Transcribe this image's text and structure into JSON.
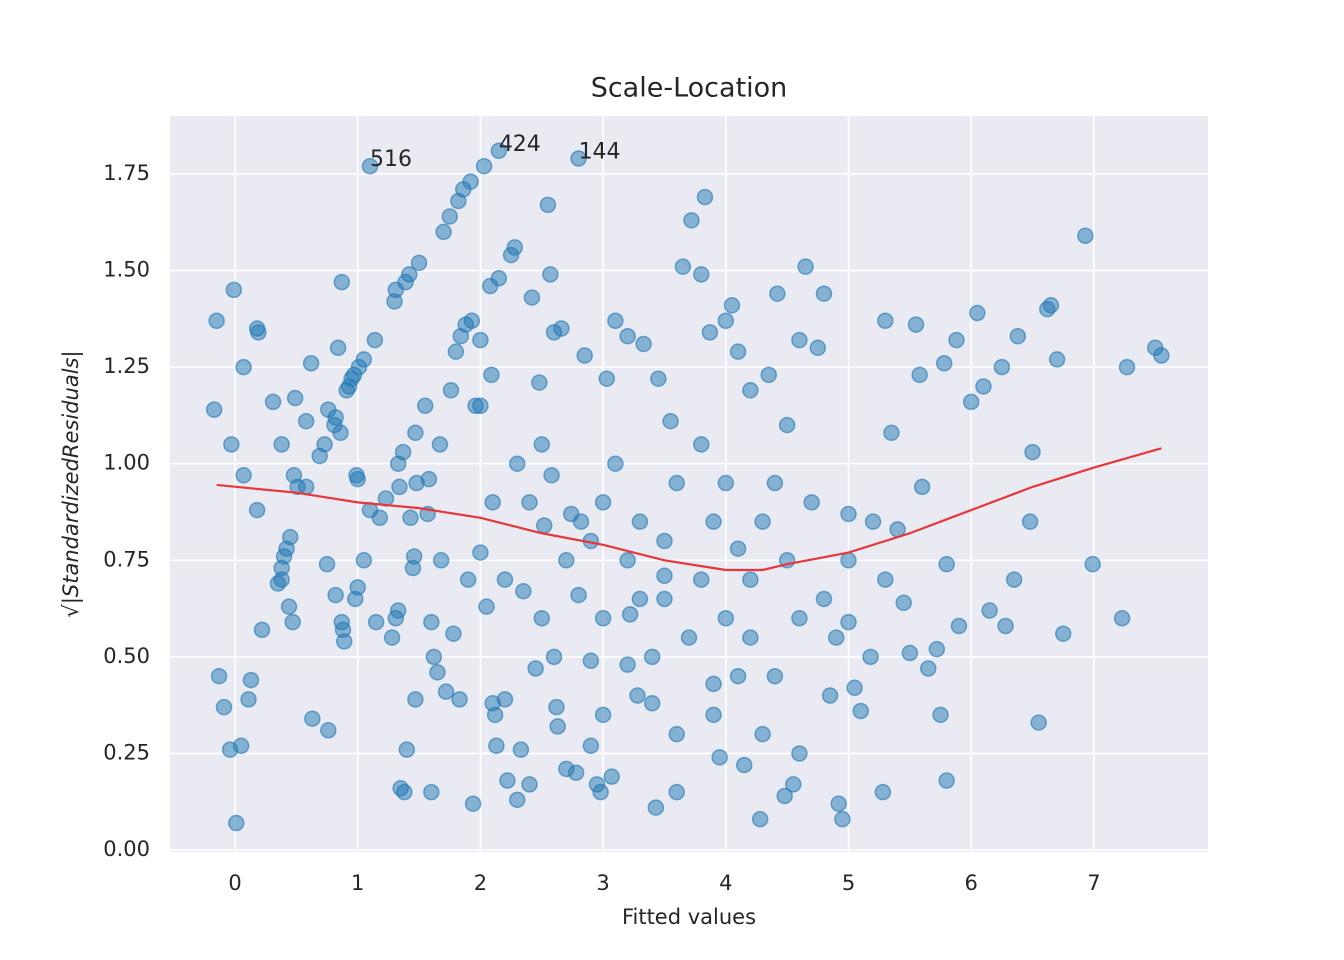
{
  "chart_data": {
    "type": "scatter",
    "title": "Scale-Location",
    "x_label": "Fitted values",
    "y_label": "√|StandardizedResiduals|",
    "color": "#1f77b4",
    "grid": true,
    "background": "#eaeaf2",
    "x": [
      -0.17,
      -0.15,
      -0.01,
      -0.03,
      0.07,
      0.07,
      0.18,
      0.19,
      0.18,
      0.22,
      -0.13,
      -0.09,
      0.13,
      0.11,
      -0.04,
      0.05,
      0.01,
      0.31,
      0.38,
      0.45,
      0.42,
      0.4,
      0.38,
      0.35,
      0.38,
      0.44,
      0.47,
      0.48,
      0.49,
      0.51,
      0.58,
      0.58,
      0.62,
      0.63,
      0.69,
      0.73,
      0.76,
      0.75,
      0.76,
      0.81,
      0.82,
      0.82,
      0.84,
      0.86,
      0.87,
      0.87,
      0.88,
      0.89,
      0.91,
      0.93,
      0.95,
      0.97,
      0.98,
      0.99,
      1.0,
      1.0,
      1.01,
      1.05,
      1.05,
      1.1,
      1.14,
      1.15,
      1.18,
      1.23,
      1.28,
      1.3,
      1.31,
      1.31,
      1.33,
      1.33,
      1.34,
      1.35,
      1.37,
      1.38,
      1.39,
      1.4,
      1.42,
      1.43,
      1.45,
      1.46,
      1.47,
      1.47,
      1.48,
      1.5,
      1.55,
      1.57,
      1.58,
      1.6,
      1.6,
      1.62,
      1.65,
      1.67,
      1.68,
      1.7,
      1.72,
      1.75,
      1.76,
      1.78,
      1.8,
      1.82,
      1.83,
      1.84,
      1.86,
      1.88,
      1.9,
      1.92,
      1.93,
      1.94,
      1.96,
      2.0,
      2.0,
      2.03,
      2.05,
      2.08,
      2.09,
      2.1,
      2.12,
      2.13,
      2.15,
      2.2,
      2.22,
      2.25,
      2.28,
      2.3,
      2.33,
      2.35,
      2.4,
      2.42,
      2.45,
      2.48,
      2.52,
      2.55,
      2.57,
      2.58,
      2.6,
      2.62,
      2.63,
      2.66,
      2.7,
      2.74,
      2.78,
      2.82,
      2.85,
      2.9,
      2.95,
      2.98,
      3.0,
      3.03,
      3.07,
      3.1,
      3.2,
      3.22,
      3.28,
      3.33,
      3.4,
      3.43,
      3.45,
      3.5,
      3.55,
      3.6,
      3.65,
      3.72,
      3.8,
      3.83,
      3.87,
      3.9,
      3.95,
      4.0,
      4.05,
      4.1,
      4.15,
      4.2,
      4.28,
      4.35,
      4.42,
      4.48,
      4.55,
      4.6,
      4.65,
      4.75,
      4.8,
      4.85,
      4.92,
      4.95,
      5.0,
      5.05,
      5.1,
      5.18,
      5.28,
      5.3,
      5.35,
      5.45,
      5.5,
      5.55,
      5.58,
      5.6,
      5.65,
      5.72,
      5.75,
      5.78,
      5.8,
      5.88,
      5.9,
      6.0,
      6.05,
      6.1,
      6.15,
      6.25,
      6.28,
      6.35,
      6.38,
      6.5,
      6.48,
      6.55,
      6.62,
      6.65,
      6.7,
      6.75,
      6.93,
      6.99,
      7.23,
      7.27,
      7.5,
      7.55,
      2.8,
      2.15,
      1.1,
      3.0,
      3.2,
      3.5,
      3.8,
      4.0,
      4.2,
      4.5,
      3.3,
      2.7,
      2.5,
      4.6,
      4.3,
      3.1,
      3.6,
      4.0,
      2.9,
      3.7,
      4.4,
      4.7,
      5.0,
      5.2,
      2.4,
      2.2,
      3.4,
      3.9,
      4.1,
      4.9,
      2.6,
      3.0,
      3.5,
      4.2,
      4.8,
      5.3,
      2.3,
      2.0,
      3.8,
      4.5,
      5.4,
      5.8,
      4.1,
      3.3,
      2.8,
      2.1,
      2.5,
      3.9,
      4.3,
      3.6,
      2.9,
      4.6,
      5.0,
      4.4,
      3.2
    ],
    "values": [
      1.14,
      1.37,
      1.45,
      1.05,
      1.25,
      0.97,
      1.35,
      1.34,
      0.88,
      0.57,
      0.45,
      0.37,
      0.44,
      0.39,
      0.26,
      0.27,
      0.07,
      1.16,
      1.05,
      0.81,
      0.78,
      0.76,
      0.73,
      0.69,
      0.7,
      0.63,
      0.59,
      0.97,
      1.17,
      0.94,
      0.94,
      1.11,
      1.26,
      0.34,
      1.02,
      1.05,
      1.14,
      0.74,
      0.31,
      1.1,
      1.12,
      0.66,
      1.3,
      1.08,
      1.47,
      0.59,
      0.57,
      0.54,
      1.19,
      1.2,
      1.22,
      1.23,
      0.65,
      0.97,
      0.96,
      0.68,
      1.25,
      1.27,
      0.75,
      0.88,
      1.32,
      0.59,
      0.86,
      0.91,
      0.55,
      1.42,
      1.45,
      0.6,
      0.62,
      1.0,
      0.94,
      0.16,
      1.03,
      0.15,
      1.47,
      0.26,
      1.49,
      0.86,
      0.73,
      0.76,
      1.08,
      0.39,
      0.95,
      1.52,
      1.15,
      0.87,
      0.96,
      0.59,
      0.15,
      0.5,
      0.46,
      1.05,
      0.75,
      1.6,
      0.41,
      1.64,
      1.19,
      0.56,
      1.29,
      1.68,
      0.39,
      1.33,
      1.71,
      1.36,
      0.7,
      1.73,
      1.37,
      0.12,
      1.15,
      1.32,
      0.77,
      1.77,
      0.63,
      1.46,
      1.23,
      0.38,
      0.35,
      0.27,
      1.48,
      0.39,
      0.18,
      1.54,
      1.56,
      0.13,
      0.26,
      0.67,
      0.17,
      1.43,
      0.47,
      1.21,
      0.84,
      1.67,
      1.49,
      0.97,
      1.34,
      0.37,
      0.32,
      1.35,
      0.21,
      0.87,
      0.2,
      0.85,
      1.28,
      0.49,
      0.17,
      0.15,
      0.35,
      1.22,
      0.19,
      1.37,
      1.33,
      0.61,
      0.4,
      1.31,
      0.38,
      0.11,
      1.22,
      0.71,
      1.11,
      0.15,
      1.51,
      1.63,
      1.49,
      1.69,
      1.34,
      0.43,
      0.24,
      1.37,
      1.41,
      1.29,
      0.22,
      1.19,
      0.08,
      1.23,
      1.44,
      0.14,
      0.17,
      1.32,
      1.51,
      1.3,
      1.44,
      0.4,
      0.12,
      0.08,
      0.59,
      0.42,
      0.36,
      0.5,
      0.15,
      1.37,
      1.08,
      0.64,
      0.51,
      1.36,
      1.23,
      0.94,
      0.47,
      0.52,
      0.35,
      1.26,
      0.18,
      1.32,
      0.58,
      1.16,
      1.39,
      1.2,
      0.62,
      1.25,
      0.58,
      0.7,
      1.33,
      1.03,
      0.85,
      0.33,
      1.4,
      1.41,
      1.27,
      0.56,
      1.59,
      0.74,
      0.6,
      1.25,
      1.3,
      1.28,
      1.79,
      1.81,
      1.77,
      0.9,
      0.75,
      0.8,
      0.7,
      0.6,
      0.55,
      0.75,
      0.65,
      0.75,
      0.6,
      0.6,
      0.85,
      1.0,
      0.95,
      0.95,
      0.8,
      0.55,
      0.45,
      0.9,
      0.75,
      0.85,
      0.9,
      0.7,
      0.5,
      0.85,
      0.45,
      0.55,
      0.5,
      0.6,
      0.65,
      0.7,
      0.65,
      0.7,
      1.0,
      1.15,
      1.05,
      1.1,
      0.83,
      0.74,
      0.78,
      0.85,
      0.66,
      0.9,
      1.05,
      0.35,
      0.3,
      0.3,
      0.27,
      0.25,
      0.87,
      0.95,
      0.48
    ],
    "lowess": {
      "color": "#e8373a",
      "x": [
        -0.15,
        0.5,
        1,
        1.5,
        2,
        2.5,
        3,
        3.5,
        4,
        4.3,
        4.5,
        5,
        5.5,
        6,
        6.5,
        7,
        7.55
      ],
      "values": [
        0.945,
        0.925,
        0.9,
        0.885,
        0.86,
        0.82,
        0.79,
        0.75,
        0.725,
        0.725,
        0.74,
        0.77,
        0.82,
        0.88,
        0.94,
        0.99,
        1.04
      ]
    },
    "annotations": [
      {
        "text": "516",
        "x": 1.1,
        "y": 1.77
      },
      {
        "text": "424",
        "x": 2.15,
        "y": 1.81
      },
      {
        "text": "144",
        "x": 2.8,
        "y": 1.79
      }
    ],
    "xlim": [
      -0.53,
      7.93
    ],
    "ylim": [
      -0.005,
      1.9
    ],
    "xticks": [
      0,
      1,
      2,
      3,
      4,
      5,
      6,
      7
    ],
    "yticks": [
      {
        "value": 0,
        "label": "0.00"
      },
      {
        "value": 0.25,
        "label": "0.25"
      },
      {
        "value": 0.5,
        "label": "0.50"
      },
      {
        "value": 0.75,
        "label": "0.75"
      },
      {
        "value": 1,
        "label": "1.00"
      },
      {
        "value": 1.25,
        "label": "1.25"
      },
      {
        "value": 1.5,
        "label": "1.50"
      },
      {
        "value": 1.75,
        "label": "1.75"
      }
    ]
  }
}
